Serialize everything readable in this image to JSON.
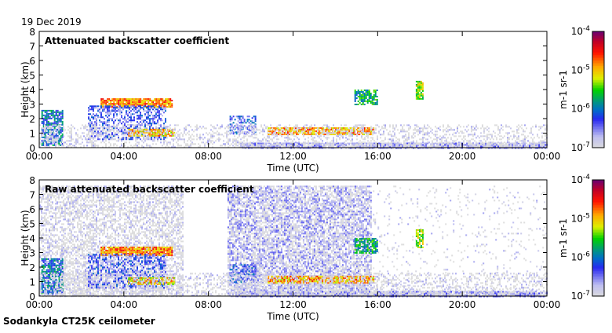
{
  "date_label": "19 Dec 2019",
  "footer_label": "Sodankyla CT25K ceilometer",
  "chart_data": [
    {
      "type": "heatmap",
      "title": "Attenuated backscatter coefficient",
      "xlabel": "Time (UTC)",
      "ylabel": "Height (km)",
      "xlim": [
        0,
        24
      ],
      "ylim": [
        0,
        8
      ],
      "xticks": [
        "00:00",
        "04:00",
        "08:00",
        "12:00",
        "16:00",
        "20:00",
        "00:00"
      ],
      "yticks": [
        "0",
        "1",
        "2",
        "3",
        "4",
        "5",
        "6",
        "7",
        "8"
      ],
      "colorbar": {
        "label": "m-1 sr-1",
        "ticks": [
          "10-7",
          "10-6",
          "10-5",
          "10-4"
        ],
        "range_log10": [
          -7,
          -4
        ]
      },
      "features": [
        {
          "name": "early-column",
          "t": [
            0.1,
            1.1
          ],
          "h": [
            0.2,
            2.6
          ],
          "log10": -6.0,
          "density": 0.75
        },
        {
          "name": "upper-layer-morning",
          "t": [
            2.9,
            6.3
          ],
          "h": [
            2.8,
            3.4
          ],
          "log10": -4.8,
          "density": 0.9
        },
        {
          "name": "precip-below-layer",
          "t": [
            2.3,
            6.0
          ],
          "h": [
            0.6,
            2.9
          ],
          "log10": -6.4,
          "density": 0.55
        },
        {
          "name": "low-layer-morning",
          "t": [
            4.2,
            6.4
          ],
          "h": [
            0.8,
            1.3
          ],
          "log10": -5.0,
          "density": 0.8
        },
        {
          "name": "mid-morning-patch",
          "t": [
            9.0,
            10.2
          ],
          "h": [
            1.0,
            2.2
          ],
          "log10": -6.3,
          "density": 0.5
        },
        {
          "name": "low-layer-midday",
          "t": [
            10.8,
            15.8
          ],
          "h": [
            0.9,
            1.4
          ],
          "log10": -4.9,
          "density": 0.9
        },
        {
          "name": "afternoon-cloud",
          "t": [
            14.9,
            16.0
          ],
          "h": [
            3.0,
            4.0
          ],
          "log10": -5.7,
          "density": 0.7
        },
        {
          "name": "evening-cloud",
          "t": [
            17.8,
            18.1
          ],
          "h": [
            3.4,
            4.6
          ],
          "log10": -5.3,
          "density": 0.8
        },
        {
          "name": "near-surface-aerosol",
          "t": [
            9.5,
            24.0
          ],
          "h": [
            0.0,
            0.35
          ],
          "log10": -6.7,
          "density": 0.9
        },
        {
          "name": "background-noise",
          "t": [
            0,
            24
          ],
          "h": [
            0,
            1.6
          ],
          "log10": -7.0,
          "density": 0.35
        }
      ]
    },
    {
      "type": "heatmap",
      "title": "Raw attenuated backscatter coefficient",
      "xlabel": "Time (UTC)",
      "ylabel": "Height (km)",
      "xlim": [
        0,
        24
      ],
      "ylim": [
        0,
        8
      ],
      "xticks": [
        "00:00",
        "04:00",
        "08:00",
        "12:00",
        "16:00",
        "20:00",
        "00:00"
      ],
      "yticks": [
        "0",
        "1",
        "2",
        "3",
        "4",
        "5",
        "6",
        "7",
        "8"
      ],
      "colorbar": {
        "label": "m-1 sr-1",
        "ticks": [
          "10-7",
          "10-6",
          "10-5",
          "10-4"
        ],
        "range_log10": [
          -7,
          -4
        ]
      },
      "features": [
        {
          "name": "noise-column-early",
          "t": [
            0,
            6.8
          ],
          "h": [
            0,
            7.6
          ],
          "log10": -7.0,
          "density": 0.55
        },
        {
          "name": "noise-column-mid",
          "t": [
            8.9,
            15.7
          ],
          "h": [
            0,
            7.6
          ],
          "log10": -6.8,
          "density": 0.7
        },
        {
          "name": "noise-sparse",
          "t": [
            15.7,
            24
          ],
          "h": [
            0,
            7.6
          ],
          "log10": -7.0,
          "density": 0.06
        },
        {
          "name": "early-column",
          "t": [
            0.1,
            1.1
          ],
          "h": [
            0.2,
            2.6
          ],
          "log10": -6.0,
          "density": 0.75
        },
        {
          "name": "upper-layer-morning",
          "t": [
            2.9,
            6.3
          ],
          "h": [
            2.8,
            3.4
          ],
          "log10": -4.8,
          "density": 0.9
        },
        {
          "name": "precip-below-layer",
          "t": [
            2.3,
            6.0
          ],
          "h": [
            0.6,
            2.9
          ],
          "log10": -6.4,
          "density": 0.55
        },
        {
          "name": "low-layer-morning",
          "t": [
            4.2,
            6.4
          ],
          "h": [
            0.8,
            1.3
          ],
          "log10": -5.0,
          "density": 0.8
        },
        {
          "name": "mid-morning-patch",
          "t": [
            9.0,
            10.2
          ],
          "h": [
            1.0,
            2.2
          ],
          "log10": -6.3,
          "density": 0.5
        },
        {
          "name": "low-layer-midday",
          "t": [
            10.8,
            15.8
          ],
          "h": [
            0.9,
            1.4
          ],
          "log10": -4.9,
          "density": 0.9
        },
        {
          "name": "afternoon-cloud",
          "t": [
            14.9,
            16.0
          ],
          "h": [
            3.0,
            4.0
          ],
          "log10": -5.7,
          "density": 0.7
        },
        {
          "name": "evening-cloud",
          "t": [
            17.8,
            18.1
          ],
          "h": [
            3.4,
            4.6
          ],
          "log10": -5.3,
          "density": 0.8
        },
        {
          "name": "near-surface-aerosol",
          "t": [
            9.5,
            24.0
          ],
          "h": [
            0.0,
            0.35
          ],
          "log10": -6.7,
          "density": 0.9
        },
        {
          "name": "background-noise",
          "t": [
            0,
            24
          ],
          "h": [
            0,
            1.6
          ],
          "log10": -7.0,
          "density": 0.35
        }
      ]
    }
  ]
}
